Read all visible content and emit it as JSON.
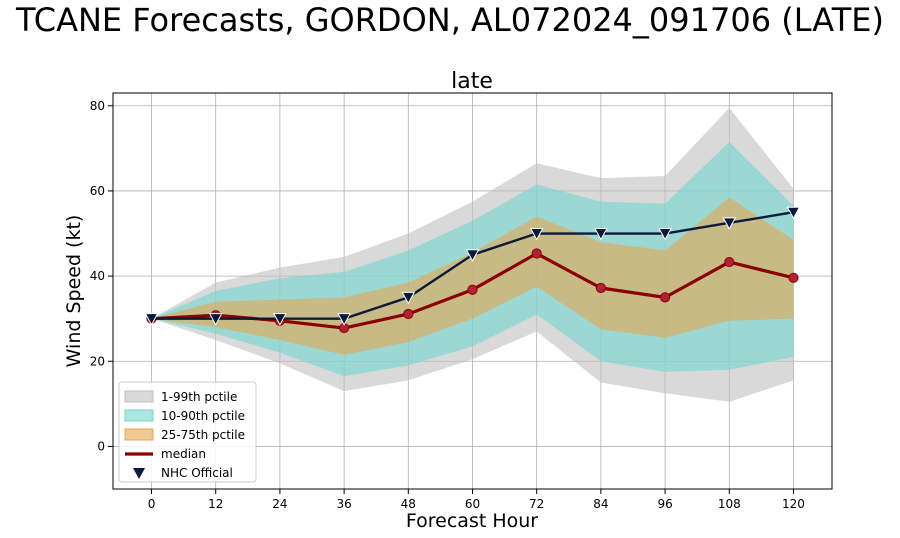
{
  "figure_title": "TCANE Forecasts, GORDON, AL072024_091706 (LATE)",
  "chart_data": {
    "type": "line",
    "title": "late",
    "xlabel": "Forecast Hour",
    "ylabel": "Wind Speed (kt)",
    "xlim": [
      -7.2,
      127.2
    ],
    "ylim": [
      -10,
      83
    ],
    "grid": true,
    "legend_position": "lower-left",
    "x": [
      0,
      12,
      24,
      36,
      48,
      60,
      72,
      84,
      96,
      108,
      120
    ],
    "x_ticks": [
      "0",
      "12",
      "24",
      "36",
      "48",
      "60",
      "72",
      "84",
      "96",
      "108",
      "120"
    ],
    "y_ticks": [
      "0",
      "20",
      "40",
      "60",
      "80"
    ],
    "y_tick_values": [
      0,
      20,
      40,
      60,
      80
    ],
    "bands": [
      {
        "name": "1-99th pctile",
        "color": "#c0c0c0",
        "lower": [
          30,
          25,
          19.5,
          13,
          15.5,
          20.5,
          27,
          15,
          12.5,
          10.5,
          15.5
        ],
        "upper": [
          30,
          38.5,
          42,
          44.5,
          50,
          57.5,
          66.5,
          63,
          63.5,
          79.5,
          60.5
        ]
      },
      {
        "name": "10-90th pctile",
        "color": "#71d7d1",
        "lower": [
          30,
          26.5,
          22,
          16.5,
          19,
          23.5,
          31,
          20,
          17.5,
          18,
          21
        ],
        "upper": [
          30,
          36.5,
          39.5,
          41,
          46,
          53,
          61.5,
          57.5,
          57,
          71.5,
          56.5
        ]
      },
      {
        "name": "25-75th pctile",
        "color": "#e6a74f",
        "lower": [
          30,
          28,
          25,
          21.5,
          24.5,
          30,
          37.5,
          27.5,
          25.5,
          29.5,
          30
        ],
        "upper": [
          30,
          34,
          34.5,
          35,
          38.5,
          45.5,
          54,
          48,
          46,
          58.5,
          48.5
        ]
      }
    ],
    "series": [
      {
        "name": "median",
        "color": "#8b0000",
        "values": [
          30,
          30.8,
          29.5,
          27.8,
          31.1,
          36.8,
          45.3,
          37.2,
          35,
          43.3,
          39.6
        ]
      },
      {
        "name": "NHC Official",
        "color": "#0b1a3a",
        "values": [
          30,
          30,
          30,
          30,
          35,
          45,
          50,
          50,
          50,
          52.5,
          55
        ]
      }
    ],
    "legend": [
      "1-99th pctile",
      "10-90th pctile",
      "25-75th pctile",
      "median",
      "NHC Official"
    ]
  }
}
